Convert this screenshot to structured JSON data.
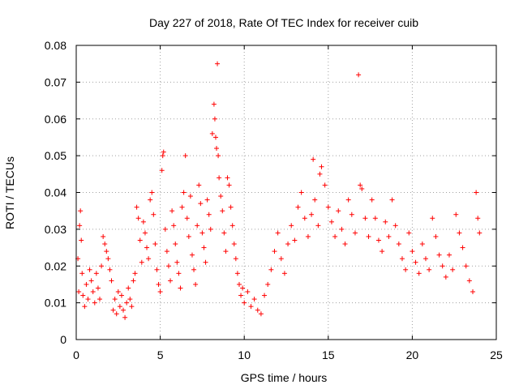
{
  "chart_data": {
    "type": "scatter",
    "title": "Day 227 of 2018, Rate Of TEC Index for receiver cuib",
    "xlabel": "GPS time / hours",
    "ylabel": "ROTI / TECUs",
    "xlim": [
      0,
      25
    ],
    "ylim": [
      0,
      0.08
    ],
    "x_ticks": [
      0,
      5,
      10,
      15,
      20,
      25
    ],
    "y_ticks": [
      0,
      0.01,
      0.02,
      0.03,
      0.04,
      0.05,
      0.06,
      0.07,
      0.08
    ],
    "x_tick_labels": [
      "0",
      "5",
      "10",
      "15",
      "20",
      "25"
    ],
    "y_tick_labels": [
      "0",
      "0.01",
      "0.02",
      "0.03",
      "0.04",
      "0.05",
      "0.06",
      "0.07",
      "0.08"
    ],
    "grid": true,
    "marker": "+",
    "color": "#ff0000",
    "series": [
      {
        "name": "ROTI",
        "points": [
          [
            0.1,
            0.022
          ],
          [
            0.15,
            0.013
          ],
          [
            0.2,
            0.031
          ],
          [
            0.25,
            0.035
          ],
          [
            0.3,
            0.027
          ],
          [
            0.35,
            0.018
          ],
          [
            0.4,
            0.012
          ],
          [
            0.5,
            0.009
          ],
          [
            0.6,
            0.015
          ],
          [
            0.7,
            0.011
          ],
          [
            0.8,
            0.019
          ],
          [
            0.9,
            0.016
          ],
          [
            1.0,
            0.013
          ],
          [
            1.1,
            0.01
          ],
          [
            1.2,
            0.018
          ],
          [
            1.3,
            0.014
          ],
          [
            1.4,
            0.011
          ],
          [
            1.5,
            0.02
          ],
          [
            1.6,
            0.028
          ],
          [
            1.7,
            0.026
          ],
          [
            1.8,
            0.024
          ],
          [
            1.9,
            0.022
          ],
          [
            2.0,
            0.019
          ],
          [
            2.1,
            0.016
          ],
          [
            2.2,
            0.008
          ],
          [
            2.3,
            0.011
          ],
          [
            2.4,
            0.007
          ],
          [
            2.5,
            0.013
          ],
          [
            2.6,
            0.009
          ],
          [
            2.7,
            0.012
          ],
          [
            2.8,
            0.008
          ],
          [
            2.9,
            0.006
          ],
          [
            3.0,
            0.01
          ],
          [
            3.1,
            0.014
          ],
          [
            3.2,
            0.011
          ],
          [
            3.3,
            0.009
          ],
          [
            3.4,
            0.016
          ],
          [
            3.5,
            0.018
          ],
          [
            3.6,
            0.036
          ],
          [
            3.7,
            0.033
          ],
          [
            3.8,
            0.027
          ],
          [
            3.9,
            0.021
          ],
          [
            4.0,
            0.032
          ],
          [
            4.1,
            0.029
          ],
          [
            4.2,
            0.025
          ],
          [
            4.3,
            0.022
          ],
          [
            4.4,
            0.038
          ],
          [
            4.5,
            0.04
          ],
          [
            4.6,
            0.034
          ],
          [
            4.7,
            0.026
          ],
          [
            4.8,
            0.019
          ],
          [
            4.9,
            0.015
          ],
          [
            5.0,
            0.013
          ],
          [
            5.1,
            0.046
          ],
          [
            5.15,
            0.05
          ],
          [
            5.2,
            0.051
          ],
          [
            5.3,
            0.03
          ],
          [
            5.4,
            0.024
          ],
          [
            5.5,
            0.02
          ],
          [
            5.6,
            0.016
          ],
          [
            5.7,
            0.035
          ],
          [
            5.8,
            0.031
          ],
          [
            5.9,
            0.026
          ],
          [
            6.0,
            0.021
          ],
          [
            6.1,
            0.018
          ],
          [
            6.2,
            0.014
          ],
          [
            6.3,
            0.036
          ],
          [
            6.4,
            0.04
          ],
          [
            6.5,
            0.05
          ],
          [
            6.6,
            0.033
          ],
          [
            6.7,
            0.028
          ],
          [
            6.8,
            0.039
          ],
          [
            6.9,
            0.023
          ],
          [
            7.0,
            0.019
          ],
          [
            7.1,
            0.015
          ],
          [
            7.2,
            0.031
          ],
          [
            7.3,
            0.042
          ],
          [
            7.4,
            0.037
          ],
          [
            7.5,
            0.029
          ],
          [
            7.6,
            0.025
          ],
          [
            7.7,
            0.021
          ],
          [
            7.8,
            0.038
          ],
          [
            7.9,
            0.034
          ],
          [
            8.0,
            0.03
          ],
          [
            8.1,
            0.056
          ],
          [
            8.2,
            0.064
          ],
          [
            8.25,
            0.06
          ],
          [
            8.3,
            0.055
          ],
          [
            8.35,
            0.052
          ],
          [
            8.4,
            0.075
          ],
          [
            8.45,
            0.05
          ],
          [
            8.5,
            0.044
          ],
          [
            8.6,
            0.039
          ],
          [
            8.7,
            0.035
          ],
          [
            8.8,
            0.029
          ],
          [
            8.9,
            0.024
          ],
          [
            9.0,
            0.044
          ],
          [
            9.1,
            0.042
          ],
          [
            9.2,
            0.036
          ],
          [
            9.3,
            0.031
          ],
          [
            9.4,
            0.026
          ],
          [
            9.5,
            0.022
          ],
          [
            9.6,
            0.018
          ],
          [
            9.7,
            0.015
          ],
          [
            9.8,
            0.012
          ],
          [
            9.9,
            0.014
          ],
          [
            10.0,
            0.01
          ],
          [
            10.2,
            0.013
          ],
          [
            10.4,
            0.009
          ],
          [
            10.6,
            0.011
          ],
          [
            10.8,
            0.008
          ],
          [
            11.0,
            0.007
          ],
          [
            11.2,
            0.012
          ],
          [
            11.4,
            0.015
          ],
          [
            11.6,
            0.019
          ],
          [
            11.8,
            0.024
          ],
          [
            12.0,
            0.029
          ],
          [
            12.2,
            0.022
          ],
          [
            12.4,
            0.018
          ],
          [
            12.6,
            0.026
          ],
          [
            12.8,
            0.031
          ],
          [
            13.0,
            0.027
          ],
          [
            13.2,
            0.036
          ],
          [
            13.4,
            0.04
          ],
          [
            13.6,
            0.033
          ],
          [
            13.8,
            0.028
          ],
          [
            14.0,
            0.034
          ],
          [
            14.1,
            0.049
          ],
          [
            14.2,
            0.038
          ],
          [
            14.4,
            0.031
          ],
          [
            14.5,
            0.045
          ],
          [
            14.6,
            0.047
          ],
          [
            14.8,
            0.042
          ],
          [
            15.0,
            0.036
          ],
          [
            15.2,
            0.032
          ],
          [
            15.4,
            0.028
          ],
          [
            15.6,
            0.035
          ],
          [
            15.8,
            0.03
          ],
          [
            16.0,
            0.026
          ],
          [
            16.2,
            0.038
          ],
          [
            16.4,
            0.034
          ],
          [
            16.6,
            0.029
          ],
          [
            16.8,
            0.072
          ],
          [
            16.9,
            0.042
          ],
          [
            17.0,
            0.041
          ],
          [
            17.2,
            0.033
          ],
          [
            17.4,
            0.028
          ],
          [
            17.6,
            0.038
          ],
          [
            17.8,
            0.033
          ],
          [
            18.0,
            0.027
          ],
          [
            18.2,
            0.024
          ],
          [
            18.4,
            0.032
          ],
          [
            18.6,
            0.028
          ],
          [
            18.8,
            0.038
          ],
          [
            19.0,
            0.031
          ],
          [
            19.2,
            0.026
          ],
          [
            19.4,
            0.022
          ],
          [
            19.6,
            0.019
          ],
          [
            19.8,
            0.029
          ],
          [
            20.0,
            0.024
          ],
          [
            20.2,
            0.021
          ],
          [
            20.4,
            0.018
          ],
          [
            20.6,
            0.026
          ],
          [
            20.8,
            0.022
          ],
          [
            21.0,
            0.019
          ],
          [
            21.2,
            0.033
          ],
          [
            21.4,
            0.028
          ],
          [
            21.6,
            0.023
          ],
          [
            21.8,
            0.02
          ],
          [
            22.0,
            0.017
          ],
          [
            22.2,
            0.023
          ],
          [
            22.4,
            0.019
          ],
          [
            22.6,
            0.034
          ],
          [
            22.8,
            0.029
          ],
          [
            23.0,
            0.025
          ],
          [
            23.2,
            0.02
          ],
          [
            23.4,
            0.016
          ],
          [
            23.6,
            0.013
          ],
          [
            23.8,
            0.04
          ],
          [
            23.9,
            0.033
          ],
          [
            24.0,
            0.029
          ]
        ]
      }
    ]
  }
}
